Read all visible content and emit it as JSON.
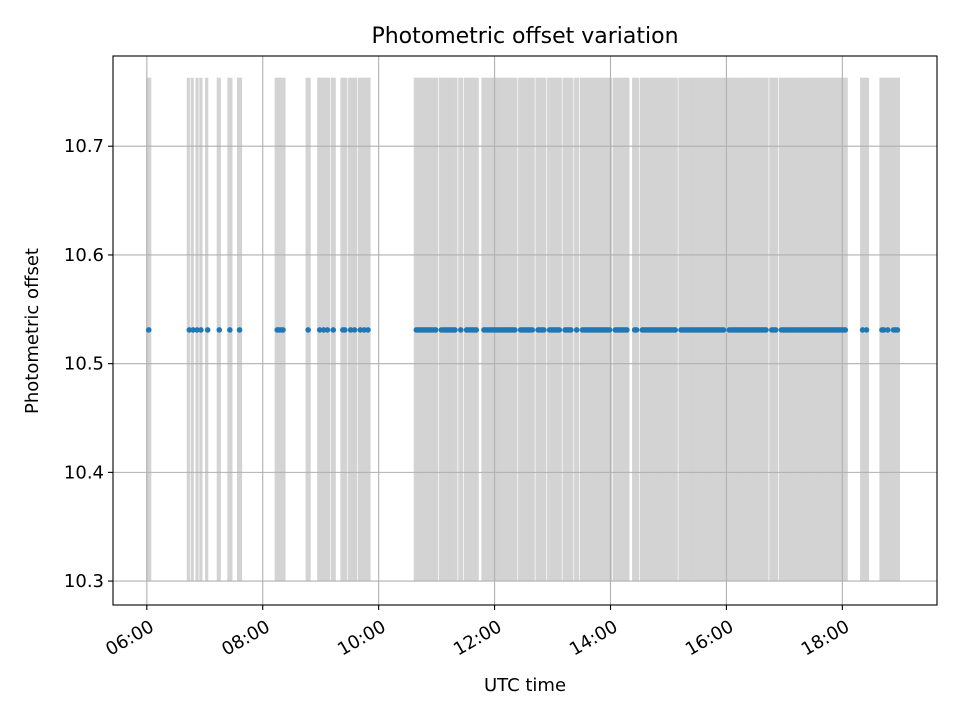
{
  "chart_data": {
    "type": "scatter",
    "title": "Photometric offset variation",
    "xlabel": "UTC time",
    "ylabel": "Photometric offset",
    "x_axis_type": "time",
    "xlim": [
      "05:25",
      "19:38"
    ],
    "ylim": [
      10.278,
      10.783
    ],
    "x_ticks": [
      "06:00",
      "08:00",
      "10:00",
      "12:00",
      "14:00",
      "16:00",
      "18:00"
    ],
    "y_ticks": [
      "10.3",
      "10.4",
      "10.5",
      "10.6",
      "10.7"
    ],
    "grid": true,
    "legend": "none",
    "vertical_bands": {
      "color": "#d3d3d3",
      "y_range": [
        10.3,
        10.763
      ],
      "x_times": [
        "06:01",
        "06:02",
        "06:03",
        "06:43",
        "06:47",
        "06:52",
        "06:56",
        "07:02",
        "07:14",
        "07:15",
        "07:25",
        "07:27",
        "07:35",
        "07:37",
        "08:14",
        "08:16",
        "08:18",
        "08:20",
        "08:22",
        "08:46",
        "08:48",
        "08:58",
        "09:00",
        "09:02",
        "09:04",
        "09:06",
        "09:08",
        "09:12",
        "09:14",
        "09:22",
        "09:24",
        "09:26",
        "09:30",
        "09:32",
        "09:34",
        "09:36",
        "09:40",
        "09:42",
        "09:44",
        "09:46",
        "09:48",
        "09:50",
        "10:38",
        "10:40",
        "10:42",
        "10:44",
        "10:46",
        "10:48",
        "10:50",
        "10:52",
        "10:54",
        "10:56",
        "10:58",
        "11:00",
        "11:04",
        "11:06",
        "11:08",
        "11:10",
        "11:12",
        "11:14",
        "11:16",
        "11:18",
        "11:20",
        "11:24",
        "11:26",
        "11:30",
        "11:32",
        "11:34",
        "11:36",
        "11:38",
        "11:40",
        "11:42",
        "11:48",
        "11:50",
        "11:52",
        "11:54",
        "11:56",
        "11:58",
        "12:00",
        "12:02",
        "12:04",
        "12:06",
        "12:08",
        "12:10",
        "12:12",
        "12:14",
        "12:16",
        "12:18",
        "12:20",
        "12:22",
        "12:26",
        "12:28",
        "12:30",
        "12:32",
        "12:34",
        "12:36",
        "12:38",
        "12:40",
        "12:44",
        "12:46",
        "12:48",
        "12:50",
        "12:52",
        "12:56",
        "12:58",
        "13:00",
        "13:02",
        "13:04",
        "13:06",
        "13:08",
        "13:12",
        "13:14",
        "13:16",
        "13:18",
        "13:20",
        "13:24",
        "13:26",
        "13:30",
        "13:32",
        "13:34",
        "13:36",
        "13:38",
        "13:40",
        "13:42",
        "13:44",
        "13:46",
        "13:48",
        "13:50",
        "13:52",
        "13:54",
        "13:56",
        "13:58",
        "14:00",
        "14:04",
        "14:06",
        "14:08",
        "14:10",
        "14:12",
        "14:14",
        "14:16",
        "14:18",
        "14:24",
        "14:26",
        "14:28",
        "14:32",
        "14:34",
        "14:36",
        "14:38",
        "14:40",
        "14:42",
        "14:44",
        "14:46",
        "14:48",
        "14:50",
        "14:52",
        "14:54",
        "14:56",
        "14:58",
        "15:00",
        "15:02",
        "15:04",
        "15:06",
        "15:08",
        "15:12",
        "15:14",
        "15:16",
        "15:18",
        "15:20",
        "15:22",
        "15:24",
        "15:26",
        "15:28",
        "15:30",
        "15:32",
        "15:34",
        "15:36",
        "15:38",
        "15:40",
        "15:42",
        "15:44",
        "15:46",
        "15:48",
        "15:50",
        "15:52",
        "15:54",
        "15:56",
        "15:58",
        "16:02",
        "16:04",
        "16:06",
        "16:08",
        "16:10",
        "16:12",
        "16:14",
        "16:16",
        "16:18",
        "16:20",
        "16:22",
        "16:24",
        "16:26",
        "16:28",
        "16:30",
        "16:32",
        "16:34",
        "16:36",
        "16:38",
        "16:40",
        "16:42",
        "16:46",
        "16:48",
        "16:50",
        "16:52",
        "16:56",
        "16:58",
        "17:00",
        "17:02",
        "17:04",
        "17:06",
        "17:08",
        "17:10",
        "17:12",
        "17:14",
        "17:16",
        "17:18",
        "17:20",
        "17:22",
        "17:24",
        "17:26",
        "17:28",
        "17:30",
        "17:32",
        "17:34",
        "17:36",
        "17:38",
        "17:40",
        "17:42",
        "17:44",
        "17:46",
        "17:48",
        "17:50",
        "17:52",
        "17:54",
        "17:56",
        "17:58",
        "18:00",
        "18:02",
        "18:04",
        "18:20",
        "18:22",
        "18:24",
        "18:26",
        "18:40",
        "18:42",
        "18:44",
        "18:46",
        "18:48",
        "18:50",
        "18:52",
        "18:54",
        "18:56",
        "18:58"
      ]
    },
    "series": [
      {
        "color": "#1f77b4",
        "x": [
          "06:02",
          "06:44",
          "06:48",
          "06:52",
          "06:56",
          "07:03",
          "07:15",
          "07:26",
          "07:36",
          "08:15",
          "08:17",
          "08:19",
          "08:21",
          "08:47",
          "08:59",
          "09:03",
          "09:07",
          "09:13",
          "09:23",
          "09:25",
          "09:31",
          "09:35",
          "09:41",
          "09:45",
          "09:49",
          "10:39",
          "10:41",
          "10:43",
          "10:45",
          "10:47",
          "10:49",
          "10:51",
          "10:53",
          "10:55",
          "10:57",
          "10:59",
          "11:05",
          "11:07",
          "11:09",
          "11:11",
          "11:13",
          "11:15",
          "11:17",
          "11:19",
          "11:25",
          "11:31",
          "11:33",
          "11:35",
          "11:37",
          "11:39",
          "11:41",
          "11:49",
          "11:51",
          "11:53",
          "11:55",
          "11:57",
          "11:59",
          "12:01",
          "12:03",
          "12:05",
          "12:07",
          "12:09",
          "12:11",
          "12:13",
          "12:15",
          "12:17",
          "12:19",
          "12:21",
          "12:27",
          "12:29",
          "12:31",
          "12:33",
          "12:35",
          "12:37",
          "12:39",
          "12:45",
          "12:47",
          "12:49",
          "12:51",
          "12:57",
          "12:59",
          "13:01",
          "13:03",
          "13:05",
          "13:07",
          "13:13",
          "13:15",
          "13:17",
          "13:19",
          "13:25",
          "13:31",
          "13:33",
          "13:35",
          "13:37",
          "13:39",
          "13:41",
          "13:43",
          "13:45",
          "13:47",
          "13:49",
          "13:51",
          "13:53",
          "13:55",
          "13:57",
          "13:59",
          "14:05",
          "14:07",
          "14:09",
          "14:11",
          "14:13",
          "14:15",
          "14:17",
          "14:25",
          "14:27",
          "14:33",
          "14:35",
          "14:37",
          "14:39",
          "14:41",
          "14:43",
          "14:45",
          "14:47",
          "14:49",
          "14:51",
          "14:53",
          "14:55",
          "14:57",
          "14:59",
          "15:01",
          "15:03",
          "15:05",
          "15:07",
          "15:13",
          "15:15",
          "15:17",
          "15:19",
          "15:21",
          "15:23",
          "15:25",
          "15:27",
          "15:29",
          "15:31",
          "15:33",
          "15:35",
          "15:37",
          "15:39",
          "15:41",
          "15:43",
          "15:45",
          "15:47",
          "15:49",
          "15:51",
          "15:53",
          "15:55",
          "15:57",
          "16:03",
          "16:05",
          "16:07",
          "16:09",
          "16:11",
          "16:13",
          "16:15",
          "16:17",
          "16:19",
          "16:21",
          "16:23",
          "16:25",
          "16:27",
          "16:29",
          "16:31",
          "16:33",
          "16:35",
          "16:37",
          "16:39",
          "16:41",
          "16:47",
          "16:49",
          "16:51",
          "16:57",
          "16:59",
          "17:01",
          "17:03",
          "17:05",
          "17:07",
          "17:09",
          "17:11",
          "17:13",
          "17:15",
          "17:17",
          "17:19",
          "17:21",
          "17:23",
          "17:25",
          "17:27",
          "17:29",
          "17:31",
          "17:33",
          "17:35",
          "17:37",
          "17:39",
          "17:41",
          "17:43",
          "17:45",
          "17:47",
          "17:49",
          "17:51",
          "17:53",
          "17:55",
          "17:57",
          "17:59",
          "18:01",
          "18:03",
          "18:21",
          "18:25",
          "18:41",
          "18:43",
          "18:47",
          "18:53",
          "18:55",
          "18:57"
        ],
        "y_constant": 10.531
      }
    ]
  }
}
